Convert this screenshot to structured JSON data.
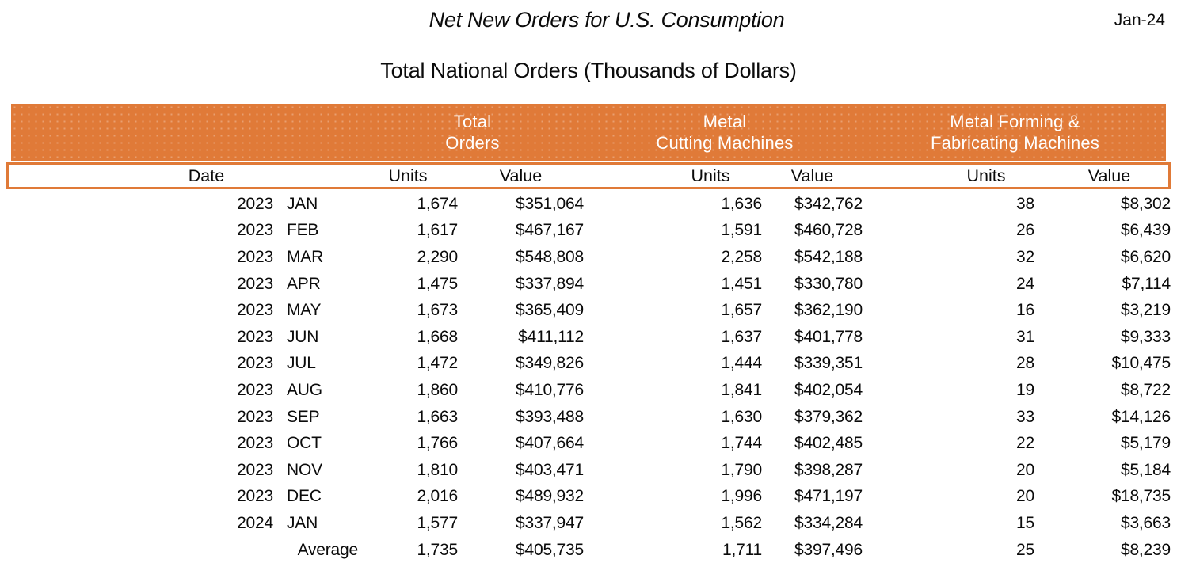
{
  "header": {
    "title": "Net New Orders for U.S. Consumption",
    "date_label": "Jan-24",
    "subtitle": "Total National Orders (Thousands of Dollars)"
  },
  "colors": {
    "accent_orange": "#e07a38",
    "text": "#0b0b0b",
    "header_text": "#ffffff"
  },
  "table": {
    "group_headers": [
      {
        "line1": "Total",
        "line2": "Orders"
      },
      {
        "line1": "Metal",
        "line2": "Cutting Machines"
      },
      {
        "line1": "Metal Forming &",
        "line2": "Fabricating Machines"
      }
    ],
    "sub_headers": {
      "date": "Date",
      "units": "Units",
      "value": "Value"
    },
    "rows": [
      {
        "year": "2023",
        "month": "JAN",
        "total_units": "1,674",
        "total_value": "$351,064",
        "mc_units": "1,636",
        "mc_value": "$342,762",
        "mff_units": "38",
        "mff_value": "$8,302"
      },
      {
        "year": "2023",
        "month": "FEB",
        "total_units": "1,617",
        "total_value": "$467,167",
        "mc_units": "1,591",
        "mc_value": "$460,728",
        "mff_units": "26",
        "mff_value": "$6,439"
      },
      {
        "year": "2023",
        "month": "MAR",
        "total_units": "2,290",
        "total_value": "$548,808",
        "mc_units": "2,258",
        "mc_value": "$542,188",
        "mff_units": "32",
        "mff_value": "$6,620"
      },
      {
        "year": "2023",
        "month": "APR",
        "total_units": "1,475",
        "total_value": "$337,894",
        "mc_units": "1,451",
        "mc_value": "$330,780",
        "mff_units": "24",
        "mff_value": "$7,114"
      },
      {
        "year": "2023",
        "month": "MAY",
        "total_units": "1,673",
        "total_value": "$365,409",
        "mc_units": "1,657",
        "mc_value": "$362,190",
        "mff_units": "16",
        "mff_value": "$3,219"
      },
      {
        "year": "2023",
        "month": "JUN",
        "total_units": "1,668",
        "total_value": "$411,112",
        "mc_units": "1,637",
        "mc_value": "$401,778",
        "mff_units": "31",
        "mff_value": "$9,333"
      },
      {
        "year": "2023",
        "month": "JUL",
        "total_units": "1,472",
        "total_value": "$349,826",
        "mc_units": "1,444",
        "mc_value": "$339,351",
        "mff_units": "28",
        "mff_value": "$10,475"
      },
      {
        "year": "2023",
        "month": "AUG",
        "total_units": "1,860",
        "total_value": "$410,776",
        "mc_units": "1,841",
        "mc_value": "$402,054",
        "mff_units": "19",
        "mff_value": "$8,722"
      },
      {
        "year": "2023",
        "month": "SEP",
        "total_units": "1,663",
        "total_value": "$393,488",
        "mc_units": "1,630",
        "mc_value": "$379,362",
        "mff_units": "33",
        "mff_value": "$14,126"
      },
      {
        "year": "2023",
        "month": "OCT",
        "total_units": "1,766",
        "total_value": "$407,664",
        "mc_units": "1,744",
        "mc_value": "$402,485",
        "mff_units": "22",
        "mff_value": "$5,179"
      },
      {
        "year": "2023",
        "month": "NOV",
        "total_units": "1,810",
        "total_value": "$403,471",
        "mc_units": "1,790",
        "mc_value": "$398,287",
        "mff_units": "20",
        "mff_value": "$5,184"
      },
      {
        "year": "2023",
        "month": "DEC",
        "total_units": "2,016",
        "total_value": "$489,932",
        "mc_units": "1,996",
        "mc_value": "$471,197",
        "mff_units": "20",
        "mff_value": "$18,735"
      },
      {
        "year": "2024",
        "month": "JAN",
        "total_units": "1,577",
        "total_value": "$337,947",
        "mc_units": "1,562",
        "mc_value": "$334,284",
        "mff_units": "15",
        "mff_value": "$3,663"
      }
    ],
    "average_row": {
      "label": "Average",
      "total_units": "1,735",
      "total_value": "$405,735",
      "mc_units": "1,711",
      "mc_value": "$397,496",
      "mff_units": "25",
      "mff_value": "$8,239"
    }
  }
}
